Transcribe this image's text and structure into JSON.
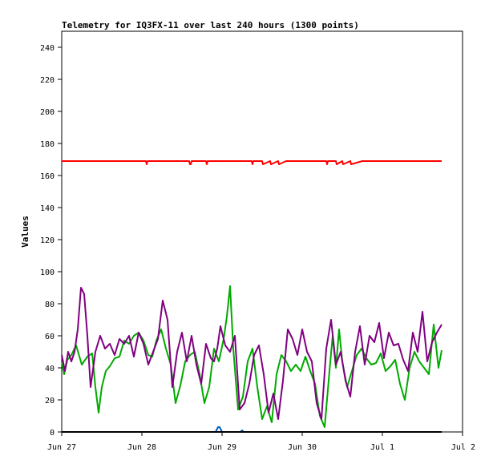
{
  "chart_data": {
    "type": "line",
    "title": "Telemetry for IQ3FX-11 over last 240 hours (1300 points)",
    "ylabel": "Values",
    "xlabel": "",
    "ylim": [
      0,
      250
    ],
    "xlim": [
      0,
      5
    ],
    "grid": false,
    "yticks": [
      0,
      20,
      40,
      60,
      80,
      100,
      120,
      140,
      160,
      180,
      200,
      220,
      240
    ],
    "xticks": [
      {
        "x": 0,
        "label": "Jun 27"
      },
      {
        "x": 1,
        "label": "Jun 28"
      },
      {
        "x": 2,
        "label": "Jun 29"
      },
      {
        "x": 3,
        "label": "Jun 30"
      },
      {
        "x": 4,
        "label": "Jul 1"
      },
      {
        "x": 5,
        "label": "Jul 2"
      }
    ],
    "series": [
      {
        "color": "#ff0000",
        "x": [
          0.0,
          1.05,
          1.06,
          1.07,
          1.59,
          1.6,
          1.61,
          1.62,
          1.8,
          1.81,
          1.82,
          2.37,
          2.38,
          2.39,
          2.5,
          2.51,
          2.6,
          2.61,
          2.7,
          2.71,
          2.8,
          2.81,
          3.3,
          3.31,
          3.32,
          3.42,
          3.43,
          3.5,
          3.51,
          3.6,
          3.61,
          3.75,
          3.76,
          4.74
        ],
        "y": [
          169,
          169,
          167,
          169,
          169,
          167,
          167,
          169,
          169,
          167,
          169,
          169,
          167,
          169,
          169,
          167,
          169,
          167,
          169,
          167,
          169,
          169,
          169,
          167,
          169,
          169,
          167,
          169,
          167,
          169,
          167,
          169,
          169,
          169
        ]
      },
      {
        "color": "#00aa00",
        "x": [
          0.0,
          0.03,
          0.07,
          0.12,
          0.18,
          0.25,
          0.32,
          0.38,
          0.42,
          0.46,
          0.5,
          0.55,
          0.6,
          0.66,
          0.72,
          0.78,
          0.84,
          0.9,
          0.96,
          1.02,
          1.08,
          1.13,
          1.18,
          1.24,
          1.3,
          1.36,
          1.42,
          1.48,
          1.54,
          1.6,
          1.66,
          1.72,
          1.78,
          1.84,
          1.9,
          1.96,
          2.02,
          2.06,
          2.1,
          2.14,
          2.2,
          2.26,
          2.32,
          2.38,
          2.44,
          2.5,
          2.56,
          2.62,
          2.68,
          2.74,
          2.8,
          2.86,
          2.92,
          2.98,
          3.04,
          3.1,
          3.16,
          3.22,
          3.28,
          3.34,
          3.38,
          3.42,
          3.46,
          3.5,
          3.56,
          3.62,
          3.68,
          3.74,
          3.8,
          3.86,
          3.92,
          3.98,
          4.04,
          4.1,
          4.16,
          4.22,
          4.28,
          4.34,
          4.4,
          4.46,
          4.52,
          4.58,
          4.64,
          4.7,
          4.74
        ],
        "y": [
          44,
          36,
          45,
          48,
          54,
          42,
          47,
          49,
          28,
          12,
          28,
          38,
          41,
          46,
          47,
          57,
          55,
          60,
          62,
          57,
          48,
          47,
          57,
          64,
          52,
          42,
          18,
          29,
          44,
          48,
          50,
          36,
          18,
          28,
          52,
          44,
          58,
          72,
          91,
          52,
          14,
          22,
          44,
          52,
          28,
          8,
          16,
          6,
          36,
          48,
          44,
          38,
          42,
          38,
          47,
          38,
          30,
          10,
          3,
          38,
          60,
          40,
          64,
          44,
          28,
          38,
          48,
          52,
          46,
          42,
          43,
          49,
          38,
          41,
          45,
          30,
          20,
          40,
          50,
          44,
          40,
          36,
          67,
          40,
          51
        ]
      },
      {
        "color": "#800080",
        "x": [
          0.0,
          0.04,
          0.08,
          0.12,
          0.16,
          0.2,
          0.24,
          0.28,
          0.32,
          0.36,
          0.42,
          0.48,
          0.54,
          0.6,
          0.66,
          0.72,
          0.78,
          0.84,
          0.9,
          0.96,
          1.02,
          1.08,
          1.14,
          1.2,
          1.26,
          1.32,
          1.38,
          1.44,
          1.5,
          1.56,
          1.62,
          1.68,
          1.74,
          1.8,
          1.86,
          1.9,
          1.94,
          1.98,
          2.04,
          2.1,
          2.16,
          2.22,
          2.28,
          2.34,
          2.4,
          2.46,
          2.52,
          2.58,
          2.64,
          2.7,
          2.76,
          2.82,
          2.88,
          2.94,
          3.0,
          3.06,
          3.12,
          3.18,
          3.24,
          3.3,
          3.36,
          3.42,
          3.48,
          3.54,
          3.6,
          3.66,
          3.72,
          3.78,
          3.84,
          3.9,
          3.96,
          4.02,
          4.08,
          4.14,
          4.2,
          4.26,
          4.32,
          4.38,
          4.44,
          4.5,
          4.56,
          4.62,
          4.68,
          4.74
        ],
        "y": [
          48,
          38,
          50,
          44,
          50,
          64,
          90,
          86,
          60,
          28,
          50,
          60,
          52,
          55,
          48,
          58,
          55,
          60,
          47,
          62,
          55,
          42,
          50,
          58,
          82,
          70,
          28,
          50,
          62,
          44,
          60,
          42,
          30,
          55,
          46,
          44,
          52,
          66,
          54,
          50,
          60,
          14,
          18,
          30,
          48,
          54,
          36,
          12,
          24,
          8,
          32,
          64,
          58,
          48,
          64,
          50,
          44,
          18,
          8,
          52,
          70,
          42,
          50,
          32,
          22,
          50,
          66,
          42,
          60,
          56,
          68,
          46,
          62,
          54,
          55,
          45,
          38,
          62,
          50,
          75,
          44,
          56,
          62,
          67
        ]
      },
      {
        "color": "#0060c0",
        "x": [
          1.92,
          1.95,
          1.97,
          2.0,
          2.23,
          2.25,
          2.27
        ],
        "y": [
          0,
          3,
          3,
          0,
          0,
          1,
          0
        ]
      },
      {
        "color": "#000000",
        "x": [
          0.0,
          4.74
        ],
        "y": [
          0,
          0
        ]
      }
    ]
  }
}
